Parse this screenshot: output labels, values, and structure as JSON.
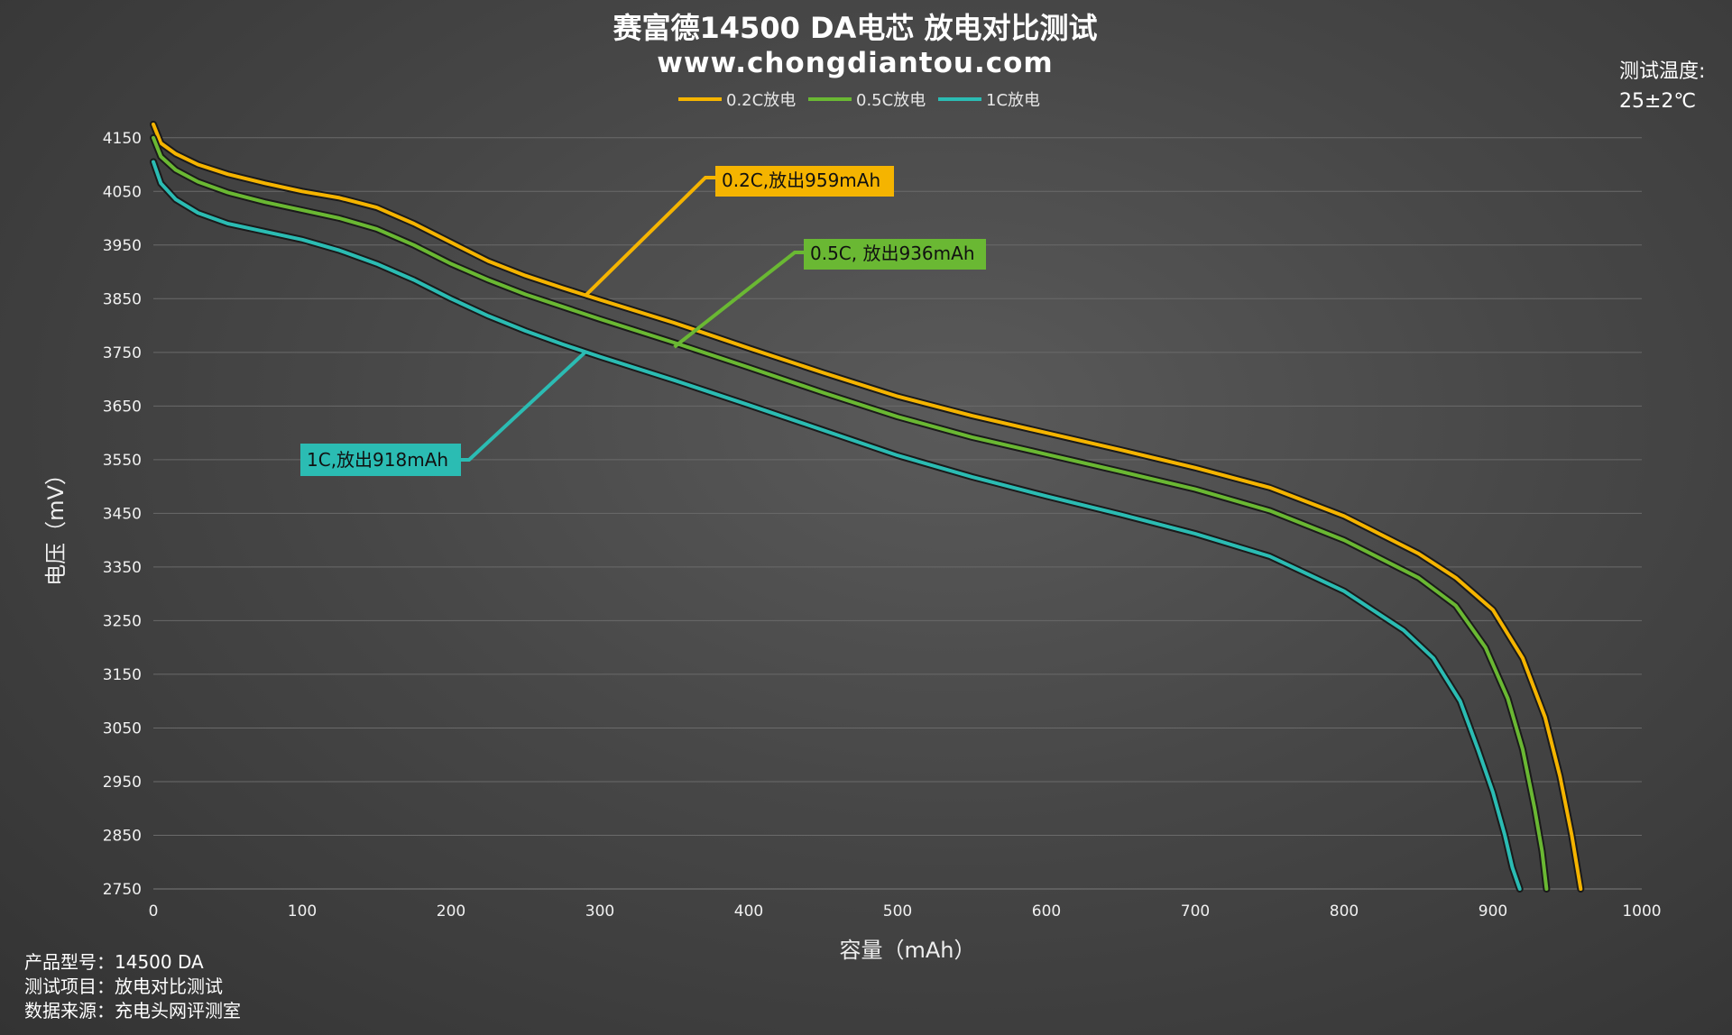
{
  "chart_data": {
    "type": "line",
    "title": "赛富德14500 DA电芯 放电对比测试",
    "subtitle": "www.chongdiantou.com",
    "xlabel": "容量（mAh）",
    "ylabel": "电压（mV）",
    "xlim": [
      0,
      1000
    ],
    "ylim": [
      2750,
      4200
    ],
    "x_ticks": [
      0,
      100,
      200,
      300,
      400,
      500,
      600,
      700,
      800,
      900,
      1000
    ],
    "y_ticks": [
      2750,
      2850,
      2950,
      3050,
      3150,
      3250,
      3350,
      3450,
      3550,
      3650,
      3750,
      3850,
      3950,
      4050,
      4150
    ],
    "grid": true,
    "legend_position": "top-center",
    "series": [
      {
        "name": "0.2C放电",
        "color": "#f5b400",
        "points": [
          [
            0,
            4175
          ],
          [
            5,
            4140
          ],
          [
            15,
            4120
          ],
          [
            30,
            4100
          ],
          [
            50,
            4082
          ],
          [
            75,
            4065
          ],
          [
            100,
            4050
          ],
          [
            125,
            4038
          ],
          [
            150,
            4020
          ],
          [
            175,
            3990
          ],
          [
            200,
            3955
          ],
          [
            225,
            3920
          ],
          [
            250,
            3893
          ],
          [
            275,
            3870
          ],
          [
            300,
            3848
          ],
          [
            350,
            3805
          ],
          [
            400,
            3758
          ],
          [
            450,
            3712
          ],
          [
            500,
            3668
          ],
          [
            550,
            3632
          ],
          [
            600,
            3600
          ],
          [
            650,
            3568
          ],
          [
            700,
            3535
          ],
          [
            750,
            3498
          ],
          [
            800,
            3445
          ],
          [
            850,
            3375
          ],
          [
            875,
            3330
          ],
          [
            900,
            3270
          ],
          [
            920,
            3180
          ],
          [
            935,
            3070
          ],
          [
            945,
            2960
          ],
          [
            953,
            2850
          ],
          [
            959,
            2750
          ]
        ]
      },
      {
        "name": "0.5C放电",
        "color": "#6ab833",
        "points": [
          [
            0,
            4150
          ],
          [
            5,
            4115
          ],
          [
            15,
            4090
          ],
          [
            30,
            4068
          ],
          [
            50,
            4048
          ],
          [
            75,
            4030
          ],
          [
            100,
            4015
          ],
          [
            125,
            4000
          ],
          [
            150,
            3980
          ],
          [
            175,
            3950
          ],
          [
            200,
            3915
          ],
          [
            225,
            3885
          ],
          [
            250,
            3858
          ],
          [
            275,
            3835
          ],
          [
            300,
            3812
          ],
          [
            350,
            3768
          ],
          [
            400,
            3722
          ],
          [
            450,
            3675
          ],
          [
            500,
            3630
          ],
          [
            550,
            3592
          ],
          [
            600,
            3560
          ],
          [
            650,
            3528
          ],
          [
            700,
            3495
          ],
          [
            750,
            3455
          ],
          [
            800,
            3400
          ],
          [
            850,
            3330
          ],
          [
            875,
            3278
          ],
          [
            895,
            3200
          ],
          [
            910,
            3105
          ],
          [
            920,
            3010
          ],
          [
            928,
            2900
          ],
          [
            933,
            2820
          ],
          [
            936,
            2750
          ]
        ]
      },
      {
        "name": "1C放电",
        "color": "#2bbcb3",
        "points": [
          [
            0,
            4105
          ],
          [
            5,
            4065
          ],
          [
            15,
            4035
          ],
          [
            30,
            4010
          ],
          [
            50,
            3990
          ],
          [
            75,
            3975
          ],
          [
            100,
            3960
          ],
          [
            125,
            3940
          ],
          [
            150,
            3915
          ],
          [
            175,
            3885
          ],
          [
            200,
            3850
          ],
          [
            225,
            3818
          ],
          [
            250,
            3790
          ],
          [
            275,
            3765
          ],
          [
            300,
            3742
          ],
          [
            350,
            3698
          ],
          [
            400,
            3652
          ],
          [
            450,
            3605
          ],
          [
            500,
            3558
          ],
          [
            550,
            3518
          ],
          [
            600,
            3482
          ],
          [
            650,
            3448
          ],
          [
            700,
            3412
          ],
          [
            750,
            3370
          ],
          [
            800,
            3305
          ],
          [
            840,
            3232
          ],
          [
            860,
            3180
          ],
          [
            878,
            3100
          ],
          [
            890,
            3010
          ],
          [
            900,
            2930
          ],
          [
            908,
            2850
          ],
          [
            913,
            2790
          ],
          [
            918,
            2750
          ]
        ]
      }
    ],
    "annotations": [
      {
        "text": "0.2C,放出959mAh",
        "series": "0.2C放电",
        "x": 290,
        "y": 3855,
        "color": "#f5b400"
      },
      {
        "text": "0.5C, 放出936mAh",
        "series": "0.5C放电",
        "x": 350,
        "y": 3760,
        "color": "#6ab833"
      },
      {
        "text": "1C,放出918mAh",
        "series": "1C放电",
        "x": 290,
        "y": 3750,
        "color": "#2bbcb3"
      }
    ]
  },
  "temperature": {
    "label": "测试温度:",
    "value": "25±2℃"
  },
  "footer": {
    "product": "产品型号：14500 DA",
    "project": "测试项目：放电对比测试",
    "source": "数据来源：充电头网评测室"
  }
}
